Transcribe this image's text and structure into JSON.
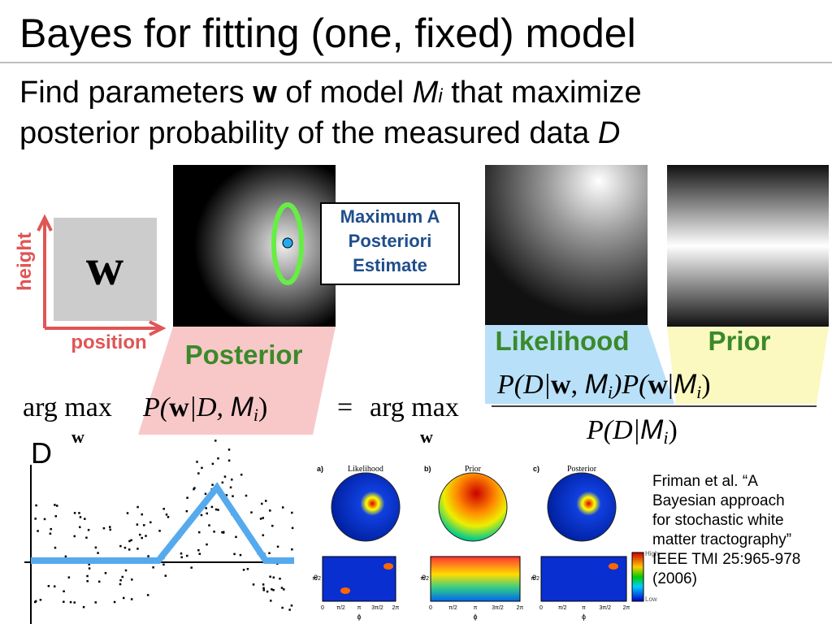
{
  "title": "Bayes for fitting (one, fixed) model",
  "body": {
    "line1": [
      "Find parameters ",
      "w",
      " of model ",
      "M",
      "i",
      " that maximize"
    ],
    "line2": [
      "posterior probability of the measured data ",
      "D"
    ]
  },
  "diagram": {
    "y_axis": "height",
    "x_axis": "position",
    "symbol": "w",
    "estimate": [
      "Maximum A",
      "Posteriori",
      "Estimate"
    ],
    "posterior": "Posterior",
    "likelihood": "Likelihood",
    "prior": "Prior"
  },
  "equation": {
    "lhs": [
      "arg max",
      "w",
      "P(",
      "w",
      "|D, ",
      "M",
      "i",
      ")"
    ],
    "eq": "=",
    "rhs": [
      "arg max",
      "w"
    ],
    "numerator": [
      "P(D|",
      "w",
      ", ",
      "M",
      "i",
      ")P(",
      "w",
      "|",
      "M",
      "i",
      ")"
    ],
    "denominator": [
      "P(D|",
      "M",
      "i",
      ")"
    ]
  },
  "data_label": "D",
  "figure": {
    "panels": [
      {
        "tag": "a)",
        "name": "Likelihood"
      },
      {
        "tag": "b)",
        "name": "Prior"
      },
      {
        "tag": "c)",
        "name": "Posterior"
      }
    ],
    "ticks": [
      "0",
      "π/2",
      "π",
      "3π/2",
      "2π"
    ],
    "x_symbol": "ϕ",
    "y_symbol": "θ",
    "high": "High",
    "low": "Low"
  },
  "citation": [
    "Friman et al. “A",
    "Bayesian approach",
    "for stochastic white",
    "matter tractography”",
    "IEEE TMI 25:965-978",
    "(2006)"
  ]
}
